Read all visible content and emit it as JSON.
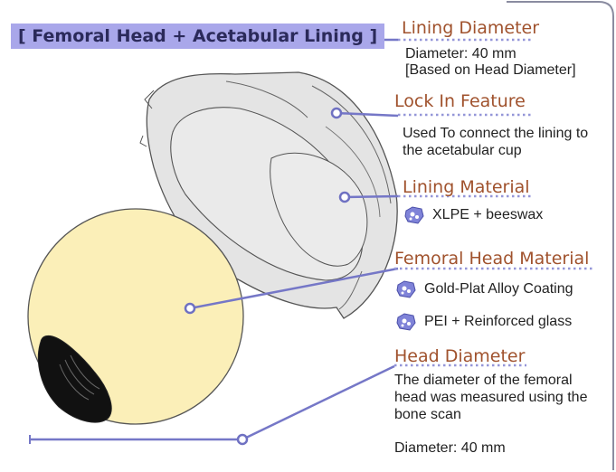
{
  "title": "[ Femoral Head + Acetabular Lining ]",
  "callouts": {
    "lining_diameter": {
      "heading": "Lining Diameter",
      "line1": "Diameter: 40 mm",
      "line2": "[Based on Head Diameter]"
    },
    "lock_in": {
      "heading": "Lock In Feature",
      "line1": "Used To connect the lining to",
      "line2": "the acetabular cup"
    },
    "lining_material": {
      "heading": "Lining Material",
      "item1": "XLPE + beeswax"
    },
    "femoral_head_material": {
      "heading": "Femoral Head Material",
      "item1": "Gold-Plat Alloy Coating",
      "item2": "PEI + Reinforced glass"
    },
    "head_diameter": {
      "heading": "Head Diameter",
      "line1": "The diameter of the femoral",
      "line2": "head was measured using the",
      "line3": "bone scan",
      "line4": "Diameter: 40 mm"
    }
  },
  "colors": {
    "accent": "#7577c7",
    "heading": "#a0522d",
    "title_bg": "#a9a7ea",
    "head_fill": "#fbefb8",
    "lining_fill": "#e3e3e3"
  },
  "icons": [
    "material-icon"
  ]
}
